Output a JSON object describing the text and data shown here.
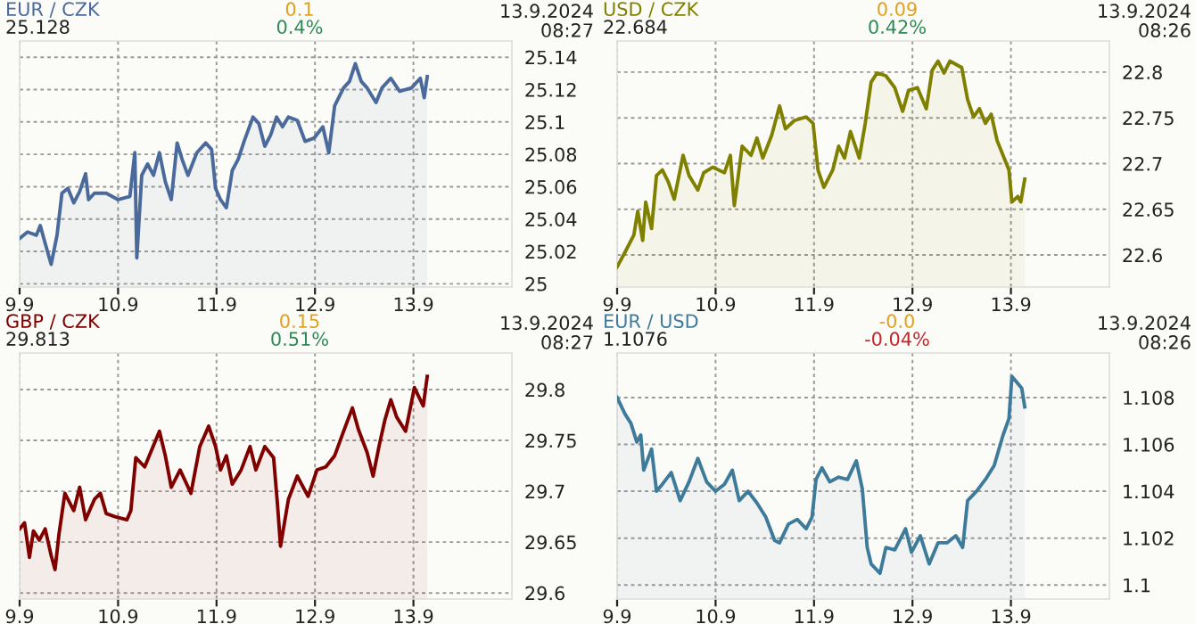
{
  "chart_data": [
    {
      "type": "area",
      "title": "EUR / CZK",
      "annotations": [
        "25.128",
        "0.1",
        "0.4%",
        "13.9.2024\n08:27"
      ],
      "color": "#4a6a9c",
      "grid": true,
      "xlim": [
        "2024-09-09",
        "2024-09-14"
      ],
      "xticks": [
        {
          "value": "2024-09-09",
          "label": "9.9"
        },
        {
          "value": "2024-09-10",
          "label": "10.9"
        },
        {
          "value": "2024-09-11",
          "label": "11.9"
        },
        {
          "value": "2024-09-12",
          "label": "12.9"
        },
        {
          "value": "2024-09-13",
          "label": "13.9"
        }
      ],
      "ylim": [
        24.998,
        25.15
      ],
      "yticks": [
        25,
        25.02,
        25.04,
        25.06,
        25.08,
        25.1,
        25.12,
        25.14
      ],
      "x": [
        "2024-09-09T00:00",
        "2024-09-09T01:55",
        "2024-09-09T04:05",
        "2024-09-09T05:02",
        "2024-09-09T06:14",
        "2024-09-09T07:41",
        "2024-09-09T09:07",
        "2024-09-09T10:19",
        "2024-09-09T11:46",
        "2024-09-09T13:12",
        "2024-09-09T14:38",
        "2024-09-09T16:05",
        "2024-09-09T16:48",
        "2024-09-09T18:14",
        "2024-09-09T21:07",
        "2024-09-10T00:00",
        "2024-09-10T02:53",
        "2024-09-10T04:05",
        "2024-09-10T04:34",
        "2024-09-10T05:46",
        "2024-09-10T07:12",
        "2024-09-10T08:38",
        "2024-09-10T10:05",
        "2024-09-10T11:31",
        "2024-09-10T12:58",
        "2024-09-10T14:24",
        "2024-09-10T15:36",
        "2024-09-10T17:02",
        "2024-09-10T19:12",
        "2024-09-10T21:22",
        "2024-09-10T22:48",
        "2024-09-10T23:46",
        "2024-09-11T00:58",
        "2024-09-11T02:24",
        "2024-09-11T03:50",
        "2024-09-11T05:17",
        "2024-09-11T06:43",
        "2024-09-11T08:53",
        "2024-09-11T10:19",
        "2024-09-11T11:46",
        "2024-09-11T13:12",
        "2024-09-11T14:38",
        "2024-09-11T16:05",
        "2024-09-11T17:31",
        "2024-09-11T19:41",
        "2024-09-11T21:36",
        "2024-09-11T23:46",
        "2024-09-12T01:55",
        "2024-09-12T03:22",
        "2024-09-12T04:48",
        "2024-09-12T06:58",
        "2024-09-12T08:24",
        "2024-09-12T09:50",
        "2024-09-12T11:17",
        "2024-09-12T12:43",
        "2024-09-12T14:53",
        "2024-09-12T16:19",
        "2024-09-12T18:29",
        "2024-09-12T20:38",
        "2024-09-12T23:31",
        "2024-09-13T01:41",
        "2024-09-13T02:38",
        "2024-09-13T03:22"
      ],
      "values": [
        25.028,
        25.032,
        25.03,
        25.036,
        25.025,
        25.012,
        25.03,
        25.056,
        25.059,
        25.05,
        25.057,
        25.068,
        25.052,
        25.056,
        25.056,
        25.052,
        25.054,
        25.081,
        25.016,
        25.067,
        25.074,
        25.067,
        25.081,
        25.063,
        25.052,
        25.087,
        25.077,
        25.067,
        25.081,
        25.087,
        25.083,
        25.059,
        25.052,
        25.047,
        25.07,
        25.077,
        25.088,
        25.103,
        25.099,
        25.085,
        25.092,
        25.103,
        25.097,
        25.103,
        25.101,
        25.088,
        25.09,
        25.097,
        25.081,
        25.11,
        25.121,
        25.125,
        25.136,
        25.125,
        25.121,
        25.112,
        25.121,
        25.127,
        25.119,
        25.121,
        25.127,
        25.115,
        25.128
      ]
    },
    {
      "type": "area",
      "title": "USD / CZK",
      "annotations": [
        "22.684",
        "0.09",
        "0.42%",
        "13.9.2024\n08:26"
      ],
      "color": "#808000",
      "grid": true,
      "xlim": [
        "2024-09-09",
        "2024-09-14"
      ],
      "xticks": [
        {
          "value": "2024-09-09",
          "label": "9.9"
        },
        {
          "value": "2024-09-10",
          "label": "10.9"
        },
        {
          "value": "2024-09-11",
          "label": "11.9"
        },
        {
          "value": "2024-09-12",
          "label": "12.9"
        },
        {
          "value": "2024-09-13",
          "label": "13.9"
        }
      ],
      "ylim": [
        22.565,
        22.834
      ],
      "yticks": [
        22.6,
        22.65,
        22.7,
        22.75,
        22.8
      ],
      "x": [
        "2024-09-09T00:00",
        "2024-09-09T01:55",
        "2024-09-09T04:05",
        "2024-09-09T05:02",
        "2024-09-09T06:14",
        "2024-09-09T06:58",
        "2024-09-09T08:24",
        "2024-09-09T09:36",
        "2024-09-09T11:02",
        "2024-09-09T12:29",
        "2024-09-09T13:55",
        "2024-09-09T16:05",
        "2024-09-09T17:31",
        "2024-09-09T19:41",
        "2024-09-09T21:07",
        "2024-09-09T23:17",
        "2024-09-10T02:10",
        "2024-09-10T03:36",
        "2024-09-10T04:34",
        "2024-09-10T06:29",
        "2024-09-10T08:38",
        "2024-09-10T10:05",
        "2024-09-10T11:31",
        "2024-09-10T13:41",
        "2024-09-10T15:36",
        "2024-09-10T17:02",
        "2024-09-10T19:12",
        "2024-09-10T22:05",
        "2024-09-10T23:46",
        "2024-09-11T00:58",
        "2024-09-11T02:24",
        "2024-09-11T04:34",
        "2024-09-11T06:00",
        "2024-09-11T07:26",
        "2024-09-11T08:53",
        "2024-09-11T11:02",
        "2024-09-11T12:29",
        "2024-09-11T13:55",
        "2024-09-11T15:22",
        "2024-09-11T17:31",
        "2024-09-11T19:41",
        "2024-09-11T21:36",
        "2024-09-11T23:02",
        "2024-09-12T01:12",
        "2024-09-12T03:22",
        "2024-09-12T04:48",
        "2024-09-12T06:14",
        "2024-09-12T07:41",
        "2024-09-12T09:07",
        "2024-09-12T12:00",
        "2024-09-12T13:26",
        "2024-09-12T14:53",
        "2024-09-12T16:19",
        "2024-09-12T17:46",
        "2024-09-12T19:12",
        "2024-09-12T20:38",
        "2024-09-12T22:05",
        "2024-09-12T23:31",
        "2024-09-13T00:14",
        "2024-09-13T01:41",
        "2024-09-13T02:24",
        "2024-09-13T03:22"
      ],
      "values": [
        22.587,
        22.603,
        22.622,
        22.648,
        22.616,
        22.658,
        22.629,
        22.687,
        22.693,
        22.68,
        22.661,
        22.709,
        22.687,
        22.671,
        22.69,
        22.696,
        22.69,
        22.709,
        22.654,
        22.719,
        22.709,
        22.728,
        22.706,
        22.731,
        22.763,
        22.738,
        22.747,
        22.751,
        22.744,
        22.693,
        22.674,
        22.693,
        22.719,
        22.706,
        22.735,
        22.706,
        22.744,
        22.789,
        22.799,
        22.796,
        22.783,
        22.757,
        22.78,
        22.783,
        22.76,
        22.802,
        22.812,
        22.799,
        22.812,
        22.805,
        22.77,
        22.751,
        22.76,
        22.744,
        22.754,
        22.725,
        22.709,
        22.693,
        22.658,
        22.664,
        22.658,
        22.683
      ]
    },
    {
      "type": "area",
      "title": "GBP / CZK",
      "annotations": [
        "29.813",
        "0.15",
        "0.51%",
        "13.9.2024\n08:27"
      ],
      "color": "#800000",
      "grid": true,
      "xlim": [
        "2024-09-09",
        "2024-09-14"
      ],
      "xticks": [
        {
          "value": "2024-09-09",
          "label": "9.9"
        },
        {
          "value": "2024-09-10",
          "label": "10.9"
        },
        {
          "value": "2024-09-11",
          "label": "11.9"
        },
        {
          "value": "2024-09-12",
          "label": "12.9"
        },
        {
          "value": "2024-09-13",
          "label": "13.9"
        }
      ],
      "ylim": [
        29.594,
        29.836
      ],
      "yticks": [
        29.6,
        29.65,
        29.7,
        29.75,
        29.8
      ],
      "x": [
        "2024-09-09T00:00",
        "2024-09-09T01:12",
        "2024-09-09T02:24",
        "2024-09-09T03:22",
        "2024-09-09T04:48",
        "2024-09-09T06:14",
        "2024-09-09T07:41",
        "2024-09-09T08:38",
        "2024-09-09T09:36",
        "2024-09-09T11:02",
        "2024-09-09T13:12",
        "2024-09-09T14:38",
        "2024-09-09T16:05",
        "2024-09-09T18:14",
        "2024-09-09T19:41",
        "2024-09-09T21:07",
        "2024-09-09T23:17",
        "2024-09-10T02:10",
        "2024-09-10T03:07",
        "2024-09-10T04:19",
        "2024-09-10T06:29",
        "2024-09-10T07:55",
        "2024-09-10T10:05",
        "2024-09-10T11:31",
        "2024-09-10T12:58",
        "2024-09-10T15:07",
        "2024-09-10T17:46",
        "2024-09-10T19:55",
        "2024-09-10T22:05",
        "2024-09-10T23:46",
        "2024-09-11T00:58",
        "2024-09-11T02:24",
        "2024-09-11T03:50",
        "2024-09-11T06:00",
        "2024-09-11T08:10",
        "2024-09-11T09:36",
        "2024-09-11T11:46",
        "2024-09-11T13:55",
        "2024-09-11T14:53",
        "2024-09-11T15:36",
        "2024-09-11T17:31",
        "2024-09-11T19:41",
        "2024-09-11T22:19",
        "2024-09-12T00:29",
        "2024-09-12T02:38",
        "2024-09-12T04:48",
        "2024-09-12T06:58",
        "2024-09-12T09:07",
        "2024-09-12T10:34",
        "2024-09-12T12:43",
        "2024-09-12T14:10",
        "2024-09-12T15:36",
        "2024-09-12T17:02",
        "2024-09-12T18:29",
        "2024-09-12T19:55",
        "2024-09-12T22:05",
        "2024-09-13T00:14",
        "2024-09-13T02:24",
        "2024-09-13T03:22"
      ],
      "values": [
        29.663,
        29.669,
        29.635,
        29.661,
        29.652,
        29.663,
        29.637,
        29.623,
        29.658,
        29.698,
        29.681,
        29.704,
        29.672,
        29.692,
        29.698,
        29.678,
        29.675,
        29.672,
        29.681,
        29.733,
        29.724,
        29.738,
        29.759,
        29.735,
        29.704,
        29.721,
        29.698,
        29.744,
        29.764,
        29.744,
        29.721,
        29.735,
        29.707,
        29.721,
        29.744,
        29.721,
        29.744,
        29.733,
        29.686,
        29.646,
        29.692,
        29.715,
        29.695,
        29.721,
        29.724,
        29.735,
        29.759,
        29.782,
        29.761,
        29.738,
        29.715,
        29.744,
        29.77,
        29.79,
        29.773,
        29.759,
        29.802,
        29.784,
        29.813
      ]
    },
    {
      "type": "area",
      "title": "EUR / USD",
      "annotations": [
        "1.1076",
        "-0.0",
        "-0.04%",
        "13.9.2024\n08:26"
      ],
      "color": "#3e7b9a",
      "grid": true,
      "xlim": [
        "2024-09-09",
        "2024-09-14"
      ],
      "xticks": [
        {
          "value": "2024-09-09",
          "label": "9.9"
        },
        {
          "value": "2024-09-10",
          "label": "10.9"
        },
        {
          "value": "2024-09-11",
          "label": "11.9"
        },
        {
          "value": "2024-09-12",
          "label": "12.9"
        },
        {
          "value": "2024-09-13",
          "label": "13.9"
        }
      ],
      "ylim": [
        1.0994,
        1.1099
      ],
      "yticks": [
        1.1,
        1.102,
        1.104,
        1.106,
        1.108
      ],
      "x": [
        "2024-09-09T00:00",
        "2024-09-09T01:55",
        "2024-09-09T03:22",
        "2024-09-09T04:48",
        "2024-09-09T05:46",
        "2024-09-09T06:29",
        "2024-09-09T08:24",
        "2024-09-09T09:36",
        "2024-09-09T11:02",
        "2024-09-09T13:12",
        "2024-09-09T15:22",
        "2024-09-09T17:31",
        "2024-09-09T19:41",
        "2024-09-09T21:50",
        "2024-09-10T00:00",
        "2024-09-10T02:10",
        "2024-09-10T04:05",
        "2024-09-10T05:46",
        "2024-09-10T07:55",
        "2024-09-10T10:05",
        "2024-09-10T12:14",
        "2024-09-10T14:24",
        "2024-09-10T15:36",
        "2024-09-10T17:46",
        "2024-09-10T19:55",
        "2024-09-10T22:05",
        "2024-09-10T23:31",
        "2024-09-11T00:29",
        "2024-09-11T01:55",
        "2024-09-11T03:50",
        "2024-09-11T06:00",
        "2024-09-11T08:10",
        "2024-09-11T10:19",
        "2024-09-11T11:46",
        "2024-09-11T12:58",
        "2024-09-11T13:55",
        "2024-09-11T16:05",
        "2024-09-11T17:31",
        "2024-09-11T19:41",
        "2024-09-11T22:19",
        "2024-09-11T23:46",
        "2024-09-12T01:55",
        "2024-09-12T04:05",
        "2024-09-12T06:14",
        "2024-09-12T08:24",
        "2024-09-12T10:34",
        "2024-09-12T12:14",
        "2024-09-12T13:26",
        "2024-09-12T15:36",
        "2024-09-12T17:46",
        "2024-09-12T19:55",
        "2024-09-12T22:05",
        "2024-09-12T23:31",
        "2024-09-13T00:14",
        "2024-09-13T01:41",
        "2024-09-13T02:38",
        "2024-09-13T03:22"
      ],
      "values": [
        1.108,
        1.1073,
        1.1069,
        1.1061,
        1.1064,
        1.1049,
        1.1058,
        1.104,
        1.1043,
        1.1048,
        1.1036,
        1.1044,
        1.1054,
        1.1044,
        1.104,
        1.1043,
        1.1049,
        1.1036,
        1.104,
        1.1035,
        1.1029,
        1.1019,
        1.1018,
        1.1026,
        1.1028,
        1.1024,
        1.1029,
        1.1045,
        1.105,
        1.1044,
        1.1046,
        1.1045,
        1.1053,
        1.1041,
        1.1016,
        1.1009,
        1.1005,
        1.1016,
        1.1015,
        1.1024,
        1.1014,
        1.1021,
        1.1009,
        1.1018,
        1.1018,
        1.1021,
        1.1016,
        1.1036,
        1.104,
        1.1045,
        1.1051,
        1.1064,
        1.1071,
        1.1089,
        1.1086,
        1.1084,
        1.1076
      ]
    }
  ]
}
